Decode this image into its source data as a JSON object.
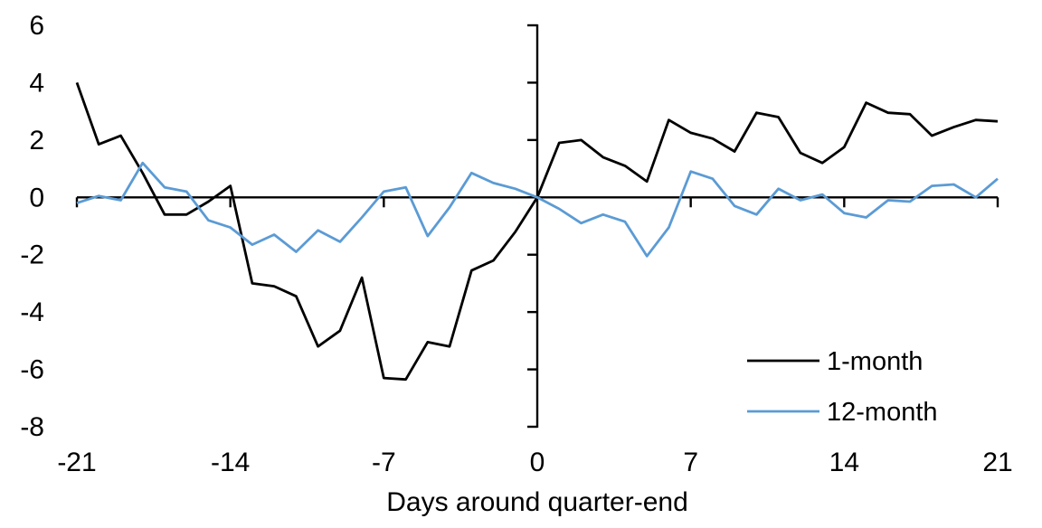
{
  "chart_data": {
    "type": "line",
    "x": [
      -21,
      -20,
      -19,
      -18,
      -17,
      -16,
      -15,
      -14,
      -13,
      -12,
      -11,
      -10,
      -9,
      -8,
      -7,
      -6,
      -5,
      -4,
      -3,
      -2,
      -1,
      0,
      1,
      2,
      3,
      4,
      5,
      6,
      7,
      8,
      9,
      10,
      11,
      12,
      13,
      14,
      15,
      16,
      17,
      18,
      19,
      20,
      21
    ],
    "series": [
      {
        "name": "1-month",
        "color": "#000000",
        "values": [
          4.0,
          1.85,
          2.15,
          0.85,
          -0.6,
          -0.6,
          -0.15,
          0.4,
          -3.0,
          -3.1,
          -3.45,
          -5.2,
          -4.65,
          -2.8,
          -6.3,
          -6.35,
          -5.05,
          -5.2,
          -2.55,
          -2.2,
          -1.2,
          0.0,
          1.9,
          2.0,
          1.4,
          1.1,
          0.55,
          2.7,
          2.25,
          2.05,
          1.6,
          2.95,
          2.8,
          1.55,
          1.2,
          1.75,
          3.3,
          2.95,
          2.9,
          2.15,
          2.45,
          2.7,
          2.65
        ]
      },
      {
        "name": "12-month",
        "color": "#5B9BD5",
        "values": [
          -0.2,
          0.05,
          -0.1,
          1.2,
          0.35,
          0.2,
          -0.8,
          -1.05,
          -1.65,
          -1.3,
          -1.9,
          -1.15,
          -1.55,
          -0.7,
          0.2,
          0.35,
          -1.35,
          -0.35,
          0.85,
          0.5,
          0.3,
          0.0,
          -0.4,
          -0.9,
          -0.6,
          -0.85,
          -2.05,
          -1.05,
          0.9,
          0.65,
          -0.3,
          -0.6,
          0.3,
          -0.1,
          0.1,
          -0.55,
          -0.7,
          -0.1,
          -0.15,
          0.4,
          0.45,
          0.0,
          0.65
        ]
      }
    ],
    "title": "",
    "xlabel": "Days around quarter-end",
    "ylabel": "",
    "xlim": [
      -21,
      21
    ],
    "ylim": [
      -8,
      6
    ],
    "xticks": [
      -21,
      -14,
      -7,
      0,
      7,
      14,
      21
    ],
    "yticks": [
      6,
      4,
      2,
      0,
      -2,
      -4,
      -6,
      -8
    ],
    "grid": false,
    "legend_position": "lower-right",
    "axis_color": "#000000"
  }
}
